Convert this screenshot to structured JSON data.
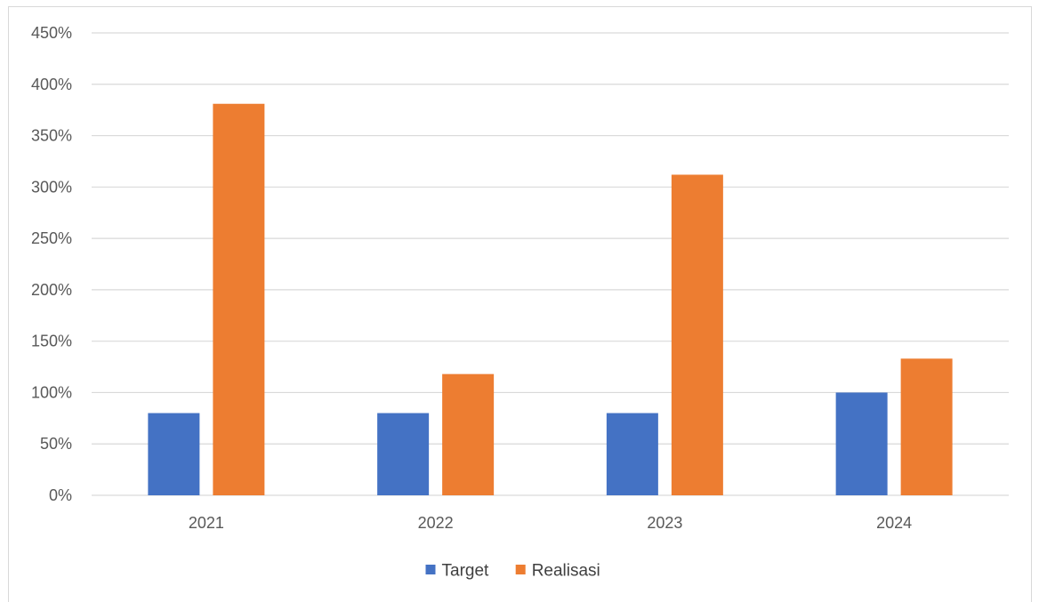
{
  "chart_data": {
    "type": "bar",
    "categories": [
      "2021",
      "2022",
      "2023",
      "2024"
    ],
    "series": [
      {
        "name": "Target",
        "values": [
          80,
          80,
          80,
          100
        ],
        "color": "#4472c4"
      },
      {
        "name": "Realisasi",
        "values": [
          381,
          118,
          312,
          133
        ],
        "color": "#ed7d31"
      }
    ],
    "y_ticks": [
      "0%",
      "50%",
      "100%",
      "150%",
      "200%",
      "250%",
      "300%",
      "350%",
      "400%",
      "450%"
    ],
    "ylim": [
      0,
      450
    ],
    "y_unit": "%",
    "grid": true,
    "gridline_color": "#d9d9d9",
    "legend_position": "bottom"
  }
}
